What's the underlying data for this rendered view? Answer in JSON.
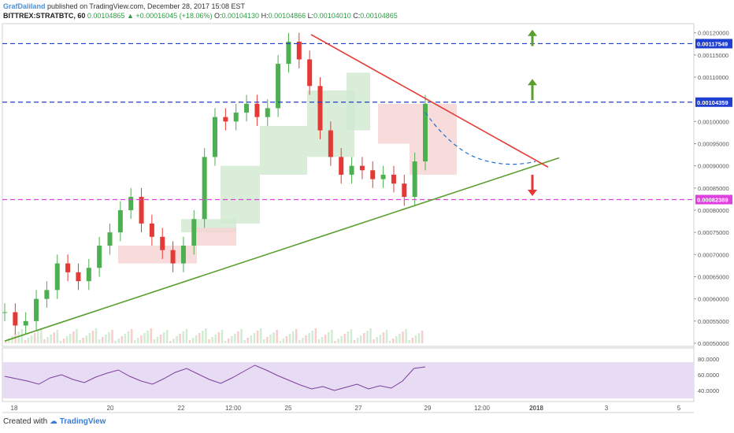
{
  "header": {
    "author": "GrafDaliland",
    "published_text": "published on TradingView.com, December 28, 2017 15:08 EST",
    "symbol": "BITTREX:STRATBTC, 60",
    "last_price": "0.00104865",
    "change_arrow": "▲",
    "change": "+0.00016045 (+18.06%)",
    "open_label": "O:",
    "open": "0.00104130",
    "high_label": "H:",
    "high": "0.00104866",
    "low_label": "L:",
    "low": "0.00104010",
    "close_label": "C:",
    "close": "0.00104865"
  },
  "footer": {
    "created_with": "Created with",
    "brand": "TradingView"
  },
  "price_axis_ticks": [
    "0.00120000",
    "0.00115000",
    "0.00110000",
    "0.00100000",
    "0.00095000",
    "0.00090000",
    "0.00085000",
    "0.00080000",
    "0.00075000",
    "0.00070000",
    "0.00065000",
    "0.00060000",
    "0.00055000",
    "0.00050000"
  ],
  "price_badges": [
    {
      "label": "0.00117549",
      "color": "#1f3fd1"
    },
    {
      "label": "0.00104359",
      "color": "#1f3fd1"
    },
    {
      "label": "0.00082389",
      "color": "#e040e0"
    }
  ],
  "rsi_axis_ticks": [
    "80.0000",
    "60.0000",
    "40.0000"
  ],
  "time_axis_ticks": [
    "18",
    "20",
    "22",
    "12:00",
    "25",
    "27",
    "29",
    "12:00",
    "2018",
    "3",
    "5"
  ],
  "colors": {
    "up": "#4caf50",
    "down": "#e53935",
    "resistance": "#e53935",
    "support": "#5a9e2f",
    "hline_blue": "#1f3fd1",
    "hline_magenta": "#e040e0",
    "rsi_line": "#7b3f9e",
    "rsi_band": "#e7dcf3",
    "cloud_green": "#cfe8cf",
    "cloud_red": "#f6d2d2",
    "arrow_up": "#5a9e2f",
    "arrow_down": "#e53935"
  },
  "chart_data": {
    "type": "line",
    "series": [
      {
        "values": [
          0.00057,
          0.00054,
          0.00055,
          0.0006,
          0.00062,
          0.00068,
          0.00066,
          0.00064,
          0.00067,
          0.00072,
          0.00075,
          0.0008,
          0.00083,
          0.00077,
          0.00074,
          0.00071,
          0.00068,
          0.00072,
          0.00078,
          0.00092,
          0.00101,
          0.001,
          0.00102,
          0.00104,
          0.00101,
          0.00103,
          0.00113,
          0.00118,
          0.00114,
          0.00108,
          0.00098,
          0.00092,
          0.00088,
          0.0009,
          0.00089,
          0.00087,
          0.00088,
          0.00086,
          0.00083,
          0.00091,
          0.00104
        ]
      }
    ],
    "ylim": [
      0.0005,
      0.00121
    ],
    "levels": [
      0.00117549,
      0.00104359,
      0.00082389
    ],
    "rsi": {
      "values": [
        58,
        55,
        52,
        48,
        56,
        60,
        54,
        50,
        57,
        62,
        66,
        58,
        52,
        48,
        55,
        63,
        68,
        61,
        54,
        49,
        56,
        64,
        72,
        66,
        59,
        53,
        47,
        42,
        45,
        40,
        44,
        48,
        42,
        46,
        43,
        52,
        68,
        70
      ],
      "ylim": [
        30,
        90
      ],
      "band": [
        30,
        70
      ]
    }
  }
}
